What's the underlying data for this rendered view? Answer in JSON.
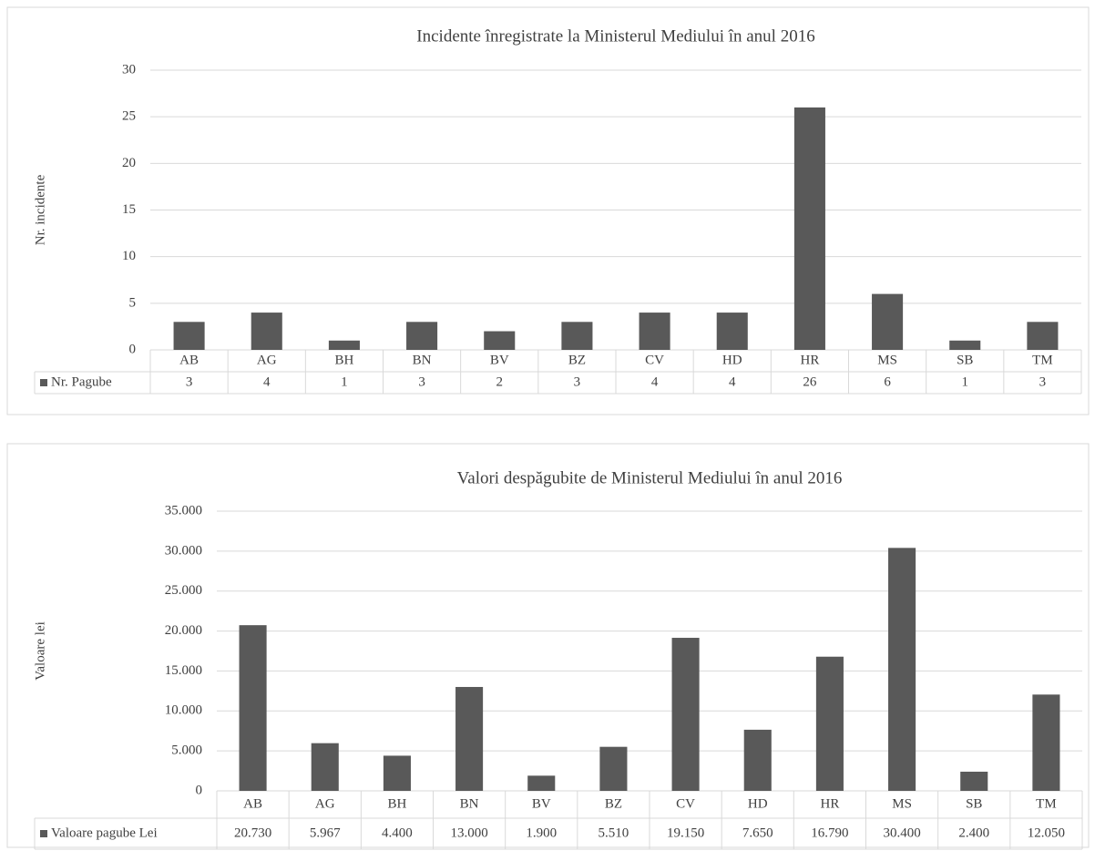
{
  "chart_data": [
    {
      "type": "bar",
      "title": "Incidente înregistrate la Ministerul Mediului în anul 2016",
      "y_label": "Nr. incidente",
      "categories": [
        "AB",
        "AG",
        "BH",
        "BN",
        "BV",
        "BZ",
        "CV",
        "HD",
        "HR",
        "MS",
        "SB",
        "TM"
      ],
      "series": [
        {
          "name": "Nr. Pagube",
          "color": "#595959",
          "values": [
            3,
            4,
            1,
            3,
            2,
            3,
            4,
            4,
            26,
            6,
            1,
            3
          ]
        }
      ],
      "ylim": [
        0,
        30
      ],
      "yticks": [
        0,
        5,
        10,
        15,
        20,
        25,
        30
      ],
      "grid": true
    },
    {
      "type": "bar",
      "title": "Valori despăgubite de Ministerul Mediului în anul 2016",
      "y_label": "Valoare lei",
      "categories": [
        "AB",
        "AG",
        "BH",
        "BN",
        "BV",
        "BZ",
        "CV",
        "HD",
        "HR",
        "MS",
        "SB",
        "TM"
      ],
      "series": [
        {
          "name": "Valoare pagube Lei",
          "color": "#595959",
          "values": [
            20730,
            5967,
            4400,
            13000,
            1900,
            5510,
            19150,
            7650,
            16790,
            30400,
            2400,
            12050
          ],
          "value_labels": [
            "20.730",
            "5.967",
            "4.400",
            "13.000",
            "1.900",
            "5.510",
            "19.150",
            "7.650",
            "16.790",
            "30.400",
            "2.400",
            "12.050"
          ]
        }
      ],
      "ylim": [
        0,
        35000
      ],
      "yticks": [
        0,
        {
          "value": 5000,
          "label": "5.000"
        },
        {
          "value": 10000,
          "label": "10.000"
        },
        {
          "value": 15000,
          "label": "15.000"
        },
        {
          "value": 20000,
          "label": "20.000"
        },
        {
          "value": 25000,
          "label": "25.000"
        },
        {
          "value": 30000,
          "label": "30.000"
        },
        {
          "value": 35000,
          "label": "35.000"
        }
      ],
      "grid": true
    }
  ]
}
